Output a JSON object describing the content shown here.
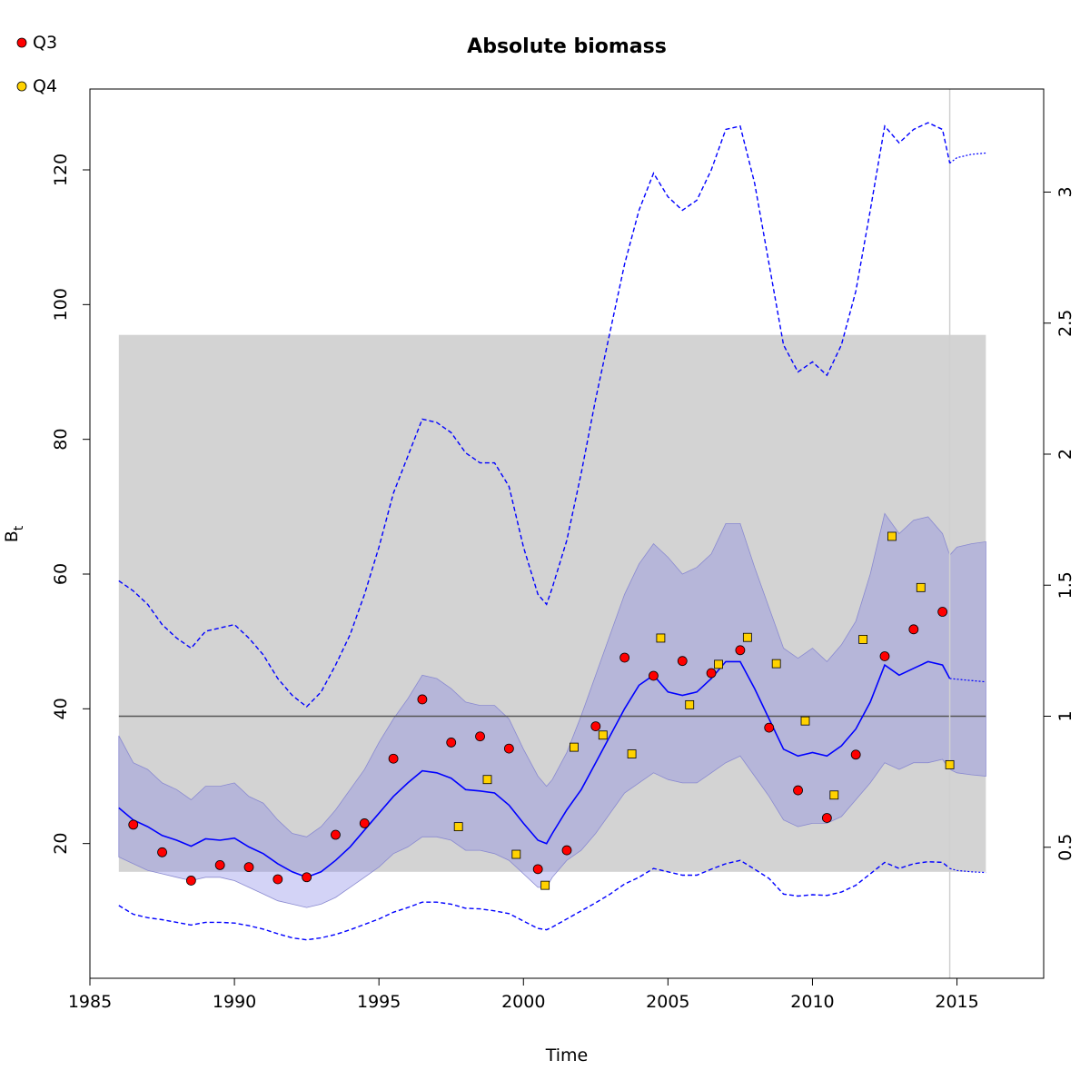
{
  "chart_data": {
    "type": "line",
    "title": "Absolute biomass",
    "xlabel": "Time",
    "ylabel": "B",
    "ylabel_subscript": "t",
    "xlim": [
      1985,
      2018
    ],
    "ylim": [
      0,
      132
    ],
    "right_axis_factor": 38.9,
    "xticks": [
      1985,
      1990,
      1995,
      2000,
      2005,
      2010,
      2015
    ],
    "yticks": [
      20,
      40,
      60,
      80,
      100,
      120
    ],
    "right_ticks": [
      0.5,
      1,
      1.5,
      2,
      2.5,
      3
    ],
    "colors": {
      "median": "#0000ff",
      "ci_band": "#b0b0d8",
      "gray_band": "#d3d3d3",
      "q3": "#ff0000",
      "q4": "#ffd200",
      "reference_line": "#555555",
      "vline": "#d0d0d0"
    },
    "reference_line": 38.9,
    "gray_band": {
      "x": [
        1986.0,
        2016.0
      ],
      "y": [
        15.8,
        95.5
      ]
    },
    "vline_x": 2014.75,
    "legend": {
      "position": "top-left",
      "entries": [
        "Q3",
        "Q4"
      ]
    },
    "median": {
      "x": [
        1986.0,
        1986.5,
        1987.0,
        1987.5,
        1988.0,
        1988.5,
        1989.0,
        1989.5,
        1990.0,
        1990.5,
        1991.0,
        1991.5,
        1992.0,
        1992.5,
        1993.0,
        1993.5,
        1994.0,
        1994.5,
        1995.0,
        1995.5,
        1996.0,
        1996.5,
        1997.0,
        1997.5,
        1998.0,
        1998.5,
        1999.0,
        1999.5,
        2000.0,
        2000.5,
        2000.8,
        2001.0,
        2001.5,
        2002.0,
        2002.5,
        2003.0,
        2003.5,
        2004.0,
        2004.5,
        2005.0,
        2005.5,
        2006.0,
        2006.5,
        2007.0,
        2007.5,
        2008.0,
        2008.5,
        2009.0,
        2009.5,
        2010.0,
        2010.5,
        2011.0,
        2011.5,
        2012.0,
        2012.5,
        2013.0,
        2013.5,
        2014.0,
        2014.5,
        2014.75
      ],
      "y": [
        25.3,
        23.5,
        22.5,
        21.2,
        20.5,
        19.6,
        20.7,
        20.5,
        20.8,
        19.5,
        18.5,
        17.0,
        15.8,
        15.0,
        15.8,
        17.5,
        19.5,
        22.0,
        24.5,
        27.0,
        29.0,
        30.8,
        30.5,
        29.7,
        28.0,
        27.8,
        27.5,
        25.7,
        23.0,
        20.5,
        20.0,
        21.5,
        25.0,
        28.0,
        32.0,
        36.0,
        40.0,
        43.5,
        45.0,
        42.5,
        42.0,
        42.5,
        44.5,
        47.0,
        47.0,
        43.0,
        38.5,
        34.0,
        33.0,
        33.5,
        33.0,
        34.5,
        37.0,
        41.0,
        46.5,
        45.0,
        46.0,
        47.0,
        46.5,
        44.5
      ]
    },
    "median_forecast": {
      "x": [
        2014.75,
        2016.0
      ],
      "y": [
        44.5,
        44.0
      ]
    },
    "ci_band": {
      "x": [
        1986.0,
        1986.5,
        1987.0,
        1987.5,
        1988.0,
        1988.5,
        1989.0,
        1989.5,
        1990.0,
        1990.5,
        1991.0,
        1991.5,
        1992.0,
        1992.5,
        1993.0,
        1993.5,
        1994.0,
        1994.5,
        1995.0,
        1995.5,
        1996.0,
        1996.5,
        1997.0,
        1997.5,
        1998.0,
        1998.5,
        1999.0,
        1999.5,
        2000.0,
        2000.5,
        2000.8,
        2001.0,
        2001.5,
        2002.0,
        2002.5,
        2003.0,
        2003.5,
        2004.0,
        2004.5,
        2005.0,
        2005.5,
        2006.0,
        2006.5,
        2007.0,
        2007.5,
        2008.0,
        2008.5,
        2009.0,
        2009.5,
        2010.0,
        2010.5,
        2011.0,
        2011.5,
        2012.0,
        2012.5,
        2013.0,
        2013.5,
        2014.0,
        2014.5,
        2014.75,
        2015.0,
        2015.5,
        2016.0
      ],
      "upper": [
        36.0,
        32.0,
        31.0,
        29.0,
        28.0,
        26.5,
        28.5,
        28.5,
        29.0,
        27.0,
        26.0,
        23.5,
        21.5,
        21.0,
        22.5,
        25.0,
        28.0,
        31.0,
        35.0,
        38.5,
        41.5,
        45.0,
        44.5,
        43.0,
        41.0,
        40.5,
        40.5,
        38.5,
        34.0,
        30.0,
        28.5,
        29.5,
        33.5,
        39.0,
        45.0,
        51.0,
        57.0,
        61.5,
        64.5,
        62.5,
        60.0,
        61.0,
        63.0,
        67.5,
        67.5,
        61.0,
        55.0,
        49.0,
        47.5,
        49.0,
        47.0,
        49.5,
        53.0,
        60.0,
        69.0,
        66.0,
        68.0,
        68.5,
        66.0,
        62.8,
        64.0,
        64.5,
        64.8
      ],
      "lower": [
        18.0,
        17.0,
        16.0,
        15.5,
        15.0,
        14.5,
        15.0,
        15.0,
        14.5,
        13.5,
        12.5,
        11.5,
        11.0,
        10.5,
        11.0,
        12.0,
        13.5,
        15.0,
        16.5,
        18.5,
        19.5,
        21.0,
        21.0,
        20.5,
        19.0,
        19.0,
        18.5,
        17.5,
        15.5,
        13.5,
        13.5,
        15.0,
        17.5,
        19.0,
        21.5,
        24.5,
        27.5,
        29.0,
        30.5,
        29.5,
        29.0,
        29.0,
        30.5,
        32.0,
        33.0,
        30.0,
        27.0,
        23.5,
        22.5,
        23.0,
        23.0,
        24.0,
        26.5,
        29.0,
        32.0,
        31.0,
        32.0,
        32.0,
        32.5,
        31.0,
        30.5,
        30.2,
        30.0
      ]
    },
    "upper_dashed": {
      "x": [
        1986.0,
        1986.5,
        1987.0,
        1987.5,
        1988.0,
        1988.5,
        1989.0,
        1989.5,
        1990.0,
        1990.5,
        1991.0,
        1991.5,
        1992.0,
        1992.5,
        1993.0,
        1993.5,
        1994.0,
        1994.5,
        1995.0,
        1995.5,
        1996.0,
        1996.5,
        1997.0,
        1997.5,
        1998.0,
        1998.5,
        1999.0,
        1999.5,
        2000.0,
        2000.5,
        2000.8,
        2001.0,
        2001.5,
        2002.0,
        2002.5,
        2003.0,
        2003.5,
        2004.0,
        2004.5,
        2005.0,
        2005.5,
        2006.0,
        2006.5,
        2007.0,
        2007.5,
        2008.0,
        2008.5,
        2009.0,
        2009.5,
        2010.0,
        2010.5,
        2011.0,
        2011.5,
        2012.0,
        2012.5,
        2013.0,
        2013.5,
        2014.0,
        2014.5,
        2014.75
      ],
      "y": [
        59.0,
        57.5,
        55.5,
        52.5,
        50.5,
        49.0,
        51.5,
        52.0,
        52.5,
        50.5,
        48.0,
        44.5,
        42.0,
        40.3,
        42.5,
        46.5,
        51.0,
        57.0,
        64.0,
        72.0,
        77.5,
        83.0,
        82.5,
        81.0,
        78.0,
        76.5,
        76.5,
        73.0,
        64.0,
        57.0,
        55.5,
        58.0,
        65.0,
        75.0,
        86.0,
        96.0,
        106.0,
        114.0,
        119.5,
        116.0,
        114.0,
        115.5,
        120.0,
        126.0,
        126.5,
        118.0,
        106.0,
        94.0,
        90.0,
        91.5,
        89.5,
        94.0,
        102.0,
        114.0,
        126.5,
        124.0,
        126.0,
        127.0,
        126.0,
        121.0
      ]
    },
    "upper_forecast": {
      "x": [
        2014.75,
        2015.0,
        2015.5,
        2016.0
      ],
      "y": [
        121.0,
        121.8,
        122.3,
        122.5
      ]
    },
    "lower_dashed": {
      "x": [
        1986.0,
        1986.5,
        1987.0,
        1987.5,
        1988.0,
        1988.5,
        1989.0,
        1989.5,
        1990.0,
        1990.5,
        1991.0,
        1991.5,
        1992.0,
        1992.5,
        1993.0,
        1993.5,
        1994.0,
        1994.5,
        1995.0,
        1995.5,
        1996.0,
        1996.5,
        1997.0,
        1997.5,
        1998.0,
        1998.5,
        1999.0,
        1999.5,
        2000.0,
        2000.5,
        2000.8,
        2001.0,
        2001.5,
        2002.0,
        2002.5,
        2003.0,
        2003.5,
        2004.0,
        2004.5,
        2005.0,
        2005.5,
        2006.0,
        2006.5,
        2007.0,
        2007.5,
        2008.0,
        2008.5,
        2009.0,
        2009.5,
        2010.0,
        2010.5,
        2011.0,
        2011.5,
        2012.0,
        2012.5,
        2013.0,
        2013.5,
        2014.0,
        2014.5,
        2014.75
      ],
      "y": [
        10.8,
        9.5,
        9.0,
        8.7,
        8.3,
        7.9,
        8.3,
        8.3,
        8.2,
        7.8,
        7.3,
        6.6,
        6.0,
        5.7,
        6.0,
        6.5,
        7.2,
        8.0,
        8.8,
        9.8,
        10.5,
        11.3,
        11.3,
        11.0,
        10.4,
        10.3,
        10.0,
        9.6,
        8.5,
        7.4,
        7.2,
        7.6,
        8.8,
        10.0,
        11.2,
        12.5,
        14.0,
        15.0,
        16.3,
        15.8,
        15.3,
        15.3,
        16.2,
        17.0,
        17.5,
        16.2,
        14.8,
        12.5,
        12.2,
        12.4,
        12.3,
        12.8,
        13.8,
        15.5,
        17.2,
        16.3,
        17.0,
        17.3,
        17.2,
        16.3
      ]
    },
    "lower_forecast": {
      "x": [
        2014.75,
        2015.0,
        2015.5,
        2016.0
      ],
      "y": [
        16.3,
        16.0,
        15.8,
        15.7
      ]
    },
    "series": [
      {
        "name": "Q3",
        "marker": "circle",
        "x": [
          1986.5,
          1987.5,
          1988.5,
          1989.5,
          1990.5,
          1991.5,
          1992.5,
          1993.5,
          1994.5,
          1995.5,
          1996.5,
          1997.5,
          1998.5,
          1999.5,
          2000.5,
          2001.5,
          2002.5,
          2003.5,
          2004.5,
          2005.5,
          2006.5,
          2007.5,
          2008.5,
          2009.5,
          2010.5,
          2011.5,
          2012.5,
          2013.5,
          2014.5
        ],
        "y": [
          22.8,
          18.7,
          14.5,
          16.8,
          16.5,
          14.7,
          15.0,
          21.3,
          23.0,
          32.6,
          41.4,
          35.0,
          35.9,
          34.1,
          16.2,
          19.0,
          37.4,
          47.6,
          44.9,
          47.1,
          45.3,
          48.7,
          37.2,
          27.9,
          23.8,
          33.2,
          47.8,
          51.8,
          54.4
        ]
      },
      {
        "name": "Q4",
        "marker": "square",
        "x": [
          1997.75,
          1998.75,
          1999.75,
          2000.75,
          2001.75,
          2002.75,
          2003.75,
          2004.75,
          2005.75,
          2006.75,
          2007.75,
          2008.75,
          2009.75,
          2010.75,
          2011.75,
          2012.75,
          2013.75,
          2014.75
        ],
        "y": [
          22.5,
          29.5,
          18.4,
          13.8,
          34.3,
          36.1,
          33.3,
          50.5,
          40.6,
          46.6,
          50.6,
          46.7,
          38.2,
          27.2,
          50.3,
          65.6,
          58.0,
          31.7
        ]
      }
    ]
  }
}
